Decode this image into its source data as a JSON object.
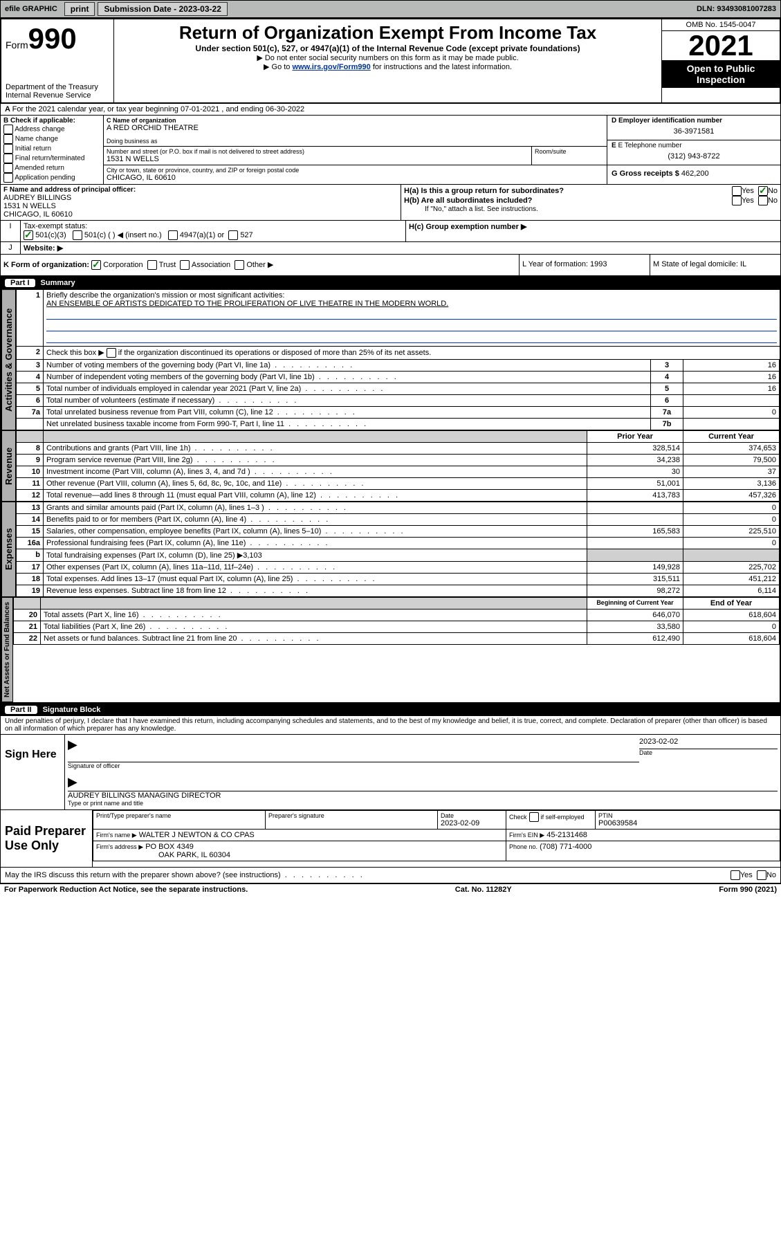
{
  "colors": {
    "topbar_bg": "#b8b9b9",
    "link_blue": "#003399",
    "check_green": "#008000",
    "shade_gray": "#d0d0d0",
    "blue_line": "#0033cc"
  },
  "topbar": {
    "efile": "efile GRAPHIC",
    "print": "print",
    "sub_label": "Submission Date - 2023-03-22",
    "dln": "DLN: 93493081007283"
  },
  "header": {
    "form_word": "Form",
    "form_num": "990",
    "title": "Return of Organization Exempt From Income Tax",
    "subtitle": "Under section 501(c), 527, or 4947(a)(1) of the Internal Revenue Code (except private foundations)",
    "note1": "▶ Do not enter social security numbers on this form as it may be made public.",
    "note2_prefix": "▶ Go to ",
    "note2_link": "www.irs.gov/Form990",
    "note2_suffix": " for instructions and the latest information.",
    "dept": "Department of the Treasury",
    "irs": "Internal Revenue Service",
    "omb": "OMB No. 1545-0047",
    "year": "2021",
    "open": "Open to Public Inspection"
  },
  "sectionA": {
    "line": "For the 2021 calendar year, or tax year beginning 07-01-2021   , and ending 06-30-2022",
    "b_label": "B Check if applicable:",
    "b_opts": [
      "Address change",
      "Name change",
      "Initial return",
      "Final return/terminated",
      "Amended return",
      "Application pending"
    ],
    "c_label": "C Name of organization",
    "c_name": "A RED ORCHID THEATRE",
    "dba_label": "Doing business as",
    "addr_label": "Number and street (or P.O. box if mail is not delivered to street address)",
    "room_label": "Room/suite",
    "addr": "1531 N WELLS",
    "city_label": "City or town, state or province, country, and ZIP or foreign postal code",
    "city": "CHICAGO, IL  60610",
    "d_label": "D Employer identification number",
    "d_ein": "36-3971581",
    "e_label": "E Telephone number",
    "e_phone": "(312) 943-8722",
    "g_label": "G Gross receipts $",
    "g_val": "462,200",
    "f_label": "F  Name and address of principal officer:",
    "f_name": "AUDREY BILLINGS",
    "f_addr": "1531 N WELLS",
    "f_city": "CHICAGO, IL  60610",
    "ha_label": "H(a)  Is this a group return for subordinates?",
    "hb_label": "H(b)  Are all subordinates included?",
    "h_note": "If \"No,\" attach a list. See instructions.",
    "hc_label": "H(c)  Group exemption number ▶",
    "yes": "Yes",
    "no": "No",
    "i_label": "Tax-exempt status:",
    "i_501c3": "501(c)(3)",
    "i_501c": "501(c) (  ) ◀ (insert no.)",
    "i_4947": "4947(a)(1) or",
    "i_527": "527",
    "j_label": "Website: ▶",
    "k_label": "K Form of organization:",
    "k_corp": "Corporation",
    "k_trust": "Trust",
    "k_assoc": "Association",
    "k_other": "Other ▶",
    "l_label": "L Year of formation: 1993",
    "m_label": "M State of legal domicile: IL"
  },
  "part1": {
    "header": "Summary",
    "label": "Part I",
    "tab1": "Activities & Governance",
    "tab2": "Revenue",
    "tab3": "Expenses",
    "tab4": "Net Assets or Fund Balances",
    "line1_label": "Briefly describe the organization's mission or most significant activities:",
    "line1_text": "AN ENSEMBLE OF ARTISTS DEDICATED TO THE PROLIFERATION OF LIVE THEATRE IN THE MODERN WORLD.",
    "line2_label": "Check this box ▶",
    "line2_suffix": "if the organization discontinued its operations or disposed of more than 25% of its net assets.",
    "rows_gov": [
      {
        "n": "3",
        "t": "Number of voting members of the governing body (Part VI, line 1a)",
        "c": "3",
        "v": "16"
      },
      {
        "n": "4",
        "t": "Number of independent voting members of the governing body (Part VI, line 1b)",
        "c": "4",
        "v": "16"
      },
      {
        "n": "5",
        "t": "Total number of individuals employed in calendar year 2021 (Part V, line 2a)",
        "c": "5",
        "v": "16"
      },
      {
        "n": "6",
        "t": "Total number of volunteers (estimate if necessary)",
        "c": "6",
        "v": ""
      },
      {
        "n": "7a",
        "t": "Total unrelated business revenue from Part VIII, column (C), line 12",
        "c": "7a",
        "v": "0"
      },
      {
        "n": "",
        "t": "Net unrelated business taxable income from Form 990-T, Part I, line 11",
        "c": "7b",
        "v": ""
      }
    ],
    "prior_label": "Prior Year",
    "current_label": "Current Year",
    "rows_rev": [
      {
        "n": "8",
        "t": "Contributions and grants (Part VIII, line 1h)",
        "p": "328,514",
        "c": "374,653"
      },
      {
        "n": "9",
        "t": "Program service revenue (Part VIII, line 2g)",
        "p": "34,238",
        "c": "79,500"
      },
      {
        "n": "10",
        "t": "Investment income (Part VIII, column (A), lines 3, 4, and 7d )",
        "p": "30",
        "c": "37"
      },
      {
        "n": "11",
        "t": "Other revenue (Part VIII, column (A), lines 5, 6d, 8c, 9c, 10c, and 11e)",
        "p": "51,001",
        "c": "3,136"
      },
      {
        "n": "12",
        "t": "Total revenue—add lines 8 through 11 (must equal Part VIII, column (A), line 12)",
        "p": "413,783",
        "c": "457,326"
      }
    ],
    "rows_exp": [
      {
        "n": "13",
        "t": "Grants and similar amounts paid (Part IX, column (A), lines 1–3 )",
        "p": "",
        "c": "0"
      },
      {
        "n": "14",
        "t": "Benefits paid to or for members (Part IX, column (A), line 4)",
        "p": "",
        "c": "0"
      },
      {
        "n": "15",
        "t": "Salaries, other compensation, employee benefits (Part IX, column (A), lines 5–10)",
        "p": "165,583",
        "c": "225,510"
      },
      {
        "n": "16a",
        "t": "Professional fundraising fees (Part IX, column (A), line 11e)",
        "p": "",
        "c": "0"
      }
    ],
    "row16b": {
      "n": "b",
      "t": "Total fundraising expenses (Part IX, column (D), line 25) ▶3,103"
    },
    "rows_exp2": [
      {
        "n": "17",
        "t": "Other expenses (Part IX, column (A), lines 11a–11d, 11f–24e)",
        "p": "149,928",
        "c": "225,702"
      },
      {
        "n": "18",
        "t": "Total expenses. Add lines 13–17 (must equal Part IX, column (A), line 25)",
        "p": "315,511",
        "c": "451,212"
      },
      {
        "n": "19",
        "t": "Revenue less expenses. Subtract line 18 from line 12",
        "p": "98,272",
        "c": "6,114"
      }
    ],
    "begin_label": "Beginning of Current Year",
    "end_label": "End of Year",
    "rows_net": [
      {
        "n": "20",
        "t": "Total assets (Part X, line 16)",
        "p": "646,070",
        "c": "618,604"
      },
      {
        "n": "21",
        "t": "Total liabilities (Part X, line 26)",
        "p": "33,580",
        "c": "0"
      },
      {
        "n": "22",
        "t": "Net assets or fund balances. Subtract line 21 from line 20",
        "p": "612,490",
        "c": "618,604"
      }
    ]
  },
  "part2": {
    "label": "Part II",
    "header": "Signature Block",
    "declaration": "Under penalties of perjury, I declare that I have examined this return, including accompanying schedules and statements, and to the best of my knowledge and belief, it is true, correct, and complete. Declaration of preparer (other than officer) is based on all information of which preparer has any knowledge.",
    "sign_here": "Sign Here",
    "sig_officer": "Signature of officer",
    "sig_date": "2023-02-02",
    "sig_name": "AUDREY BILLINGS  MANAGING DIRECTOR",
    "sig_name_label": "Type or print name and title",
    "date_label": "Date",
    "paid_label": "Paid Preparer Use Only",
    "prep_name_label": "Print/Type preparer's name",
    "prep_sig_label": "Preparer's signature",
    "prep_date_label": "Date",
    "prep_date": "2023-02-09",
    "prep_check_label": "Check",
    "prep_self": "if self-employed",
    "ptin_label": "PTIN",
    "ptin": "P00639584",
    "firm_name_label": "Firm's name    ▶",
    "firm_name": "WALTER J NEWTON & CO CPAS",
    "firm_ein_label": "Firm's EIN ▶",
    "firm_ein": "45-2131468",
    "firm_addr_label": "Firm's address ▶",
    "firm_addr": "PO BOX 4349",
    "firm_city": "OAK PARK, IL  60304",
    "phone_label": "Phone no.",
    "phone": "(708) 771-4000",
    "discuss": "May the IRS discuss this return with the preparer shown above? (see instructions)"
  },
  "footer": {
    "left": "For Paperwork Reduction Act Notice, see the separate instructions.",
    "mid": "Cat. No. 11282Y",
    "right_prefix": "Form ",
    "right_form": "990",
    "right_suffix": " (2021)"
  }
}
